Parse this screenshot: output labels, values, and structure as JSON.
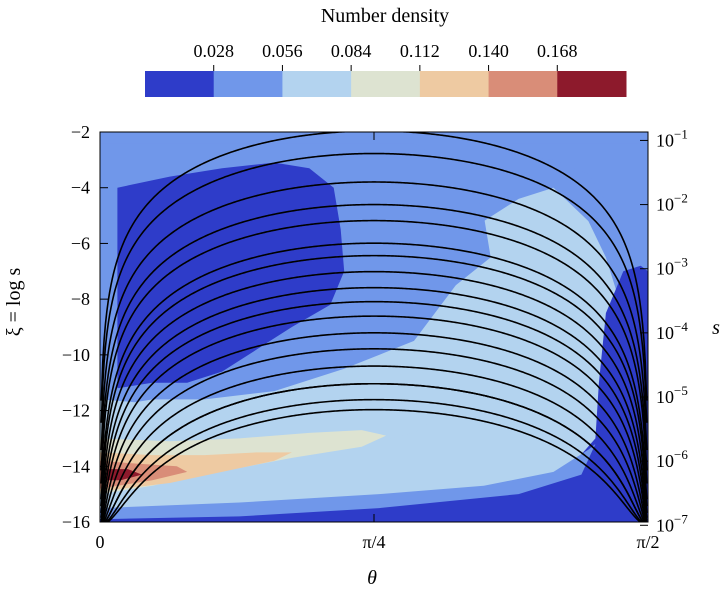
{
  "chart_data": {
    "type": "heatmap",
    "title": "Number density",
    "colorbar": {
      "tick_labels": [
        "0.028",
        "0.056",
        "0.084",
        "0.112",
        "0.140",
        "0.168"
      ],
      "colors": [
        "#2e3cc9",
        "#7097ea",
        "#b3d3ef",
        "#dde3d1",
        "#eecaa2",
        "#d98d78",
        "#8d1a2c"
      ],
      "placement": "top"
    },
    "xlabel": "θ",
    "ylabel": "ξ = log s",
    "y2label": "s",
    "xlim": [
      0,
      1.5708
    ],
    "ylim": [
      -16,
      -2
    ],
    "x_ticks": [
      {
        "value": 0,
        "label": "0"
      },
      {
        "value": 0.7854,
        "label": "π/4"
      },
      {
        "value": 1.5708,
        "label": "π/2"
      }
    ],
    "y_ticks": [
      {
        "value": -2,
        "label": "−2"
      },
      {
        "value": -4,
        "label": "−4"
      },
      {
        "value": -6,
        "label": "−6"
      },
      {
        "value": -8,
        "label": "−8"
      },
      {
        "value": -10,
        "label": "−10"
      },
      {
        "value": -12,
        "label": "−12"
      },
      {
        "value": -14,
        "label": "−14"
      },
      {
        "value": -16,
        "label": "−16"
      }
    ],
    "y2_ticks": [
      {
        "value": -2.3026,
        "base": "10",
        "exp": "−1"
      },
      {
        "value": -4.6052,
        "base": "10",
        "exp": "−2"
      },
      {
        "value": -6.9078,
        "base": "10",
        "exp": "−3"
      },
      {
        "value": -9.2103,
        "base": "10",
        "exp": "−4"
      },
      {
        "value": -11.5129,
        "base": "10",
        "exp": "−5"
      },
      {
        "value": -13.8155,
        "base": "10",
        "exp": "−6"
      },
      {
        "value": -16.1181,
        "base": "10",
        "exp": "−7"
      }
    ],
    "regions": [
      {
        "level": 2,
        "points": [
          [
            0,
            -11.6
          ],
          [
            0.1,
            -11.7
          ],
          [
            0.2,
            -11.5
          ],
          [
            0.3,
            -11.2
          ],
          [
            0.4,
            -10.8
          ],
          [
            0.5,
            -10.4
          ],
          [
            0.6,
            -10.0
          ],
          [
            0.7,
            -9.2
          ],
          [
            0.8,
            -8.3
          ],
          [
            0.9,
            -7.2
          ],
          [
            1.0,
            -6.2
          ],
          [
            1.1,
            -5.2
          ],
          [
            1.2,
            -4.4
          ],
          [
            1.3,
            -4.0
          ],
          [
            1.4,
            -5.2
          ],
          [
            1.45,
            -6.5
          ],
          [
            1.5,
            -8.5
          ],
          [
            1.55,
            -10.6
          ],
          [
            1.5708,
            -11.6
          ],
          [
            1.5708,
            -16
          ],
          [
            0,
            -16
          ]
        ]
      },
      {
        "level": 1,
        "points": [
          [
            0,
            -2.4
          ],
          [
            0.9,
            -2.4
          ],
          [
            0.98,
            -3.0
          ],
          [
            1.06,
            -3.5
          ],
          [
            1.1,
            -5.0
          ],
          [
            1.12,
            -6.5
          ],
          [
            1.02,
            -7.5
          ],
          [
            0.9,
            -9.5
          ],
          [
            0.7,
            -10.5
          ],
          [
            0.5,
            -11.3
          ],
          [
            0.3,
            -11.6
          ],
          [
            0,
            -11.6
          ]
        ]
      },
      {
        "level": 1,
        "points": [
          [
            1.15,
            -2.4
          ],
          [
            1.5708,
            -2.4
          ],
          [
            1.5708,
            -6.5
          ],
          [
            1.5,
            -5.9
          ],
          [
            1.45,
            -4.5
          ],
          [
            1.4,
            -3.5
          ],
          [
            1.3,
            -3.0
          ],
          [
            1.2,
            -2.8
          ]
        ]
      },
      {
        "level": 0,
        "points": [
          [
            0.05,
            -4.0
          ],
          [
            0.2,
            -3.6
          ],
          [
            0.35,
            -3.3
          ],
          [
            0.5,
            -3.1
          ],
          [
            0.6,
            -3.3
          ],
          [
            0.67,
            -4.0
          ],
          [
            0.69,
            -5.5
          ],
          [
            0.7,
            -7.0
          ],
          [
            0.66,
            -8.2
          ],
          [
            0.55,
            -9.0
          ],
          [
            0.45,
            -9.8
          ],
          [
            0.35,
            -10.6
          ],
          [
            0.25,
            -11.0
          ],
          [
            0.15,
            -11.0
          ],
          [
            0.05,
            -11.2
          ]
        ]
      },
      {
        "level": 0,
        "points": [
          [
            1.45,
            -8.5
          ],
          [
            1.5,
            -7.0
          ],
          [
            1.55,
            -6.8
          ],
          [
            1.5708,
            -7.0
          ],
          [
            1.5708,
            -16
          ],
          [
            0,
            -16
          ],
          [
            0,
            -15.7
          ],
          [
            0.5,
            -15.5
          ],
          [
            0.9,
            -15.2
          ],
          [
            1.2,
            -14.7
          ],
          [
            1.35,
            -14.0
          ],
          [
            1.42,
            -13.0
          ],
          [
            1.43,
            -11.0
          ]
        ]
      },
      {
        "level": 2,
        "points": [
          [
            0,
            -12.4
          ],
          [
            0.2,
            -12.6
          ],
          [
            0.4,
            -12.4
          ],
          [
            0.6,
            -12.1
          ],
          [
            0.78,
            -11.8
          ],
          [
            0.9,
            -12.0
          ],
          [
            0.95,
            -12.4
          ],
          [
            0.9,
            -12.8
          ],
          [
            0.7,
            -13.4
          ],
          [
            0.4,
            -14.2
          ],
          [
            0.2,
            -14.8
          ],
          [
            0,
            -15.2
          ]
        ]
      },
      {
        "level": 3,
        "points": [
          [
            0,
            -13.0
          ],
          [
            0.2,
            -13.1
          ],
          [
            0.4,
            -13.0
          ],
          [
            0.6,
            -12.8
          ],
          [
            0.75,
            -12.7
          ],
          [
            0.82,
            -12.9
          ],
          [
            0.75,
            -13.3
          ],
          [
            0.55,
            -13.7
          ],
          [
            0.3,
            -14.3
          ],
          [
            0.15,
            -14.7
          ],
          [
            0,
            -15.0
          ]
        ]
      },
      {
        "level": 4,
        "points": [
          [
            0,
            -13.5
          ],
          [
            0.15,
            -13.6
          ],
          [
            0.3,
            -13.6
          ],
          [
            0.45,
            -13.5
          ],
          [
            0.55,
            -13.5
          ],
          [
            0.5,
            -13.8
          ],
          [
            0.35,
            -14.2
          ],
          [
            0.2,
            -14.6
          ],
          [
            0,
            -14.9
          ]
        ]
      },
      {
        "level": 5,
        "points": [
          [
            0,
            -13.8
          ],
          [
            0.1,
            -13.9
          ],
          [
            0.22,
            -14.0
          ],
          [
            0.25,
            -14.2
          ],
          [
            0.15,
            -14.5
          ],
          [
            0,
            -14.8
          ]
        ]
      },
      {
        "level": 6,
        "points": [
          [
            0.02,
            -14.1
          ],
          [
            0.08,
            -14.1
          ],
          [
            0.12,
            -14.3
          ],
          [
            0.06,
            -14.5
          ],
          [
            0.02,
            -14.5
          ]
        ]
      },
      {
        "level": 1,
        "points": [
          [
            0,
            -15.5
          ],
          [
            0.4,
            -15.3
          ],
          [
            0.8,
            -15.0
          ],
          [
            1.1,
            -14.7
          ],
          [
            1.3,
            -14.2
          ],
          [
            1.4,
            -13.4
          ],
          [
            1.42,
            -13.2
          ],
          [
            1.38,
            -14.3
          ],
          [
            1.2,
            -15.0
          ],
          [
            0.8,
            -15.5
          ],
          [
            0.4,
            -15.8
          ],
          [
            0,
            -15.9
          ]
        ]
      }
    ],
    "contours": [
      {
        "a": 0.75,
        "m": 0.7854,
        "b": 0.0
      },
      {
        "a": 0.5,
        "m": 0.7854,
        "b": 0.0
      },
      {
        "a": 0.3,
        "m": 0.7854,
        "b": 0.0
      },
      {
        "a": 0.2,
        "m": 0.7854,
        "b": 0.0
      },
      {
        "a": 0.15,
        "m": 0.7854,
        "b": 0.0
      },
      {
        "a": 0.1,
        "m": 0.7854,
        "b": 0.0
      },
      {
        "a": 0.08,
        "m": 0.7854,
        "b": 0.0
      },
      {
        "a": 0.06,
        "m": 0.7854,
        "b": 0.0
      },
      {
        "a": 0.045,
        "m": 0.7854,
        "b": 0.0
      },
      {
        "a": 0.035,
        "m": 0.7854,
        "b": 0.0
      },
      {
        "a": 0.027,
        "m": 0.7854,
        "b": 0.0
      },
      {
        "a": 0.02,
        "m": 0.7854,
        "b": 0.0
      },
      {
        "a": 0.015,
        "m": 0.7854,
        "b": 0.0
      },
      {
        "a": 0.011,
        "m": 0.7854,
        "b": 0.0
      },
      {
        "a": 0.008,
        "m": 0.7854,
        "b": 0.0
      },
      {
        "a": 0.006,
        "m": 0.7854,
        "b": 0.0
      },
      {
        "a": 0.008,
        "m": 0.7854,
        "b": 0.5
      },
      {
        "a": 0.005,
        "m": 0.7854,
        "b": 1.0
      }
    ]
  }
}
